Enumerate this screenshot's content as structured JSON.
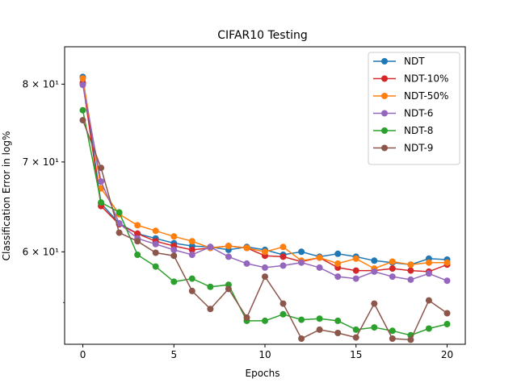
{
  "chart_data": {
    "type": "line",
    "title": "CIFAR10 Testing",
    "xlabel": "Epochs",
    "ylabel": "Classification Error in log%",
    "yscale": "log",
    "xlim": [
      -1,
      21
    ],
    "ylim": [
      51.2,
      85.3
    ],
    "xticks": [
      0,
      5,
      10,
      15,
      20
    ],
    "yticks": [
      {
        "value": 60,
        "label": "6 × 10¹"
      },
      {
        "value": 70,
        "label": "7 × 10¹"
      },
      {
        "value": 80,
        "label": "8 × 10¹"
      }
    ],
    "grid": false,
    "legend_position": "top-right",
    "x": [
      0,
      1,
      2,
      3,
      4,
      5,
      6,
      7,
      8,
      9,
      10,
      11,
      12,
      13,
      14,
      15,
      16,
      17,
      18,
      19,
      20
    ],
    "series": [
      {
        "name": "NDT",
        "color": "#1f77b4",
        "values": [
          81.0,
          65.2,
          63.0,
          61.9,
          61.4,
          60.9,
          60.6,
          60.5,
          60.2,
          60.5,
          60.2,
          59.7,
          60.0,
          59.5,
          59.8,
          59.5,
          59.1,
          58.9,
          58.7,
          59.3,
          59.2
        ]
      },
      {
        "name": "NDT-10%",
        "color": "#d62728",
        "values": [
          80.2,
          64.9,
          62.9,
          61.9,
          61.1,
          60.6,
          60.2,
          60.4,
          60.6,
          60.4,
          59.6,
          59.5,
          59.0,
          59.4,
          58.4,
          58.1,
          58.1,
          58.3,
          58.1,
          58.0,
          58.7
        ]
      },
      {
        "name": "NDT-50%",
        "color": "#ff7f0e",
        "values": [
          80.8,
          66.9,
          64.0,
          62.8,
          62.2,
          61.6,
          61.1,
          60.4,
          60.6,
          60.4,
          60.0,
          60.5,
          59.1,
          59.4,
          58.8,
          59.3,
          58.3,
          59.0,
          58.7,
          58.9,
          58.9
        ]
      },
      {
        "name": "NDT-6",
        "color": "#9467bd",
        "values": [
          79.9,
          67.7,
          63.0,
          61.4,
          60.8,
          60.2,
          59.7,
          60.5,
          59.5,
          58.8,
          58.4,
          58.6,
          58.9,
          58.4,
          57.5,
          57.3,
          58.0,
          57.5,
          57.2,
          57.8,
          57.1
        ]
      },
      {
        "name": "NDT-8",
        "color": "#2ca02c",
        "values": [
          76.5,
          65.3,
          64.2,
          59.7,
          58.5,
          57.0,
          57.3,
          56.5,
          56.7,
          53.3,
          53.3,
          53.9,
          53.4,
          53.5,
          53.3,
          52.5,
          52.7,
          52.4,
          52.0,
          52.6,
          53.0
        ]
      },
      {
        "name": "NDT-9",
        "color": "#8c564b",
        "values": [
          75.2,
          69.3,
          62.0,
          61.1,
          59.9,
          59.6,
          56.1,
          54.4,
          56.3,
          53.6,
          57.5,
          54.9,
          51.7,
          52.5,
          52.2,
          51.8,
          54.9,
          51.7,
          51.6,
          55.2,
          54.0
        ]
      }
    ]
  }
}
